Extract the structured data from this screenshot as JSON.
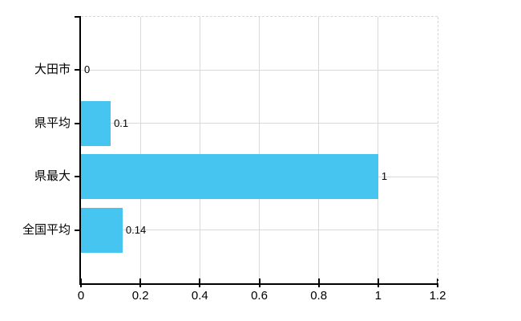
{
  "chart_data": {
    "type": "bar",
    "orientation": "horizontal",
    "title": "",
    "categories": [
      "大田市",
      "県平均",
      "県最大",
      "全国平均"
    ],
    "values": [
      0,
      0.1,
      1,
      0.14
    ],
    "value_labels": [
      "0",
      "0.1",
      "1",
      "0.14"
    ],
    "x_ticks": [
      0,
      0.2,
      0.4,
      0.6,
      0.8,
      1,
      1.2
    ],
    "x_tick_labels": [
      "0",
      "0.2",
      "0.4",
      "0.6",
      "0.8",
      "1",
      "1.2"
    ],
    "xlim": [
      0,
      1.2
    ],
    "grid": true,
    "legend": false,
    "colors": {
      "bar": "#46C5F1",
      "grid_solid": "#D9D9D9",
      "grid_dashed": "#D6D6D6",
      "axis": "#000000",
      "text": "#000000",
      "background": "#FFFFFF"
    }
  }
}
